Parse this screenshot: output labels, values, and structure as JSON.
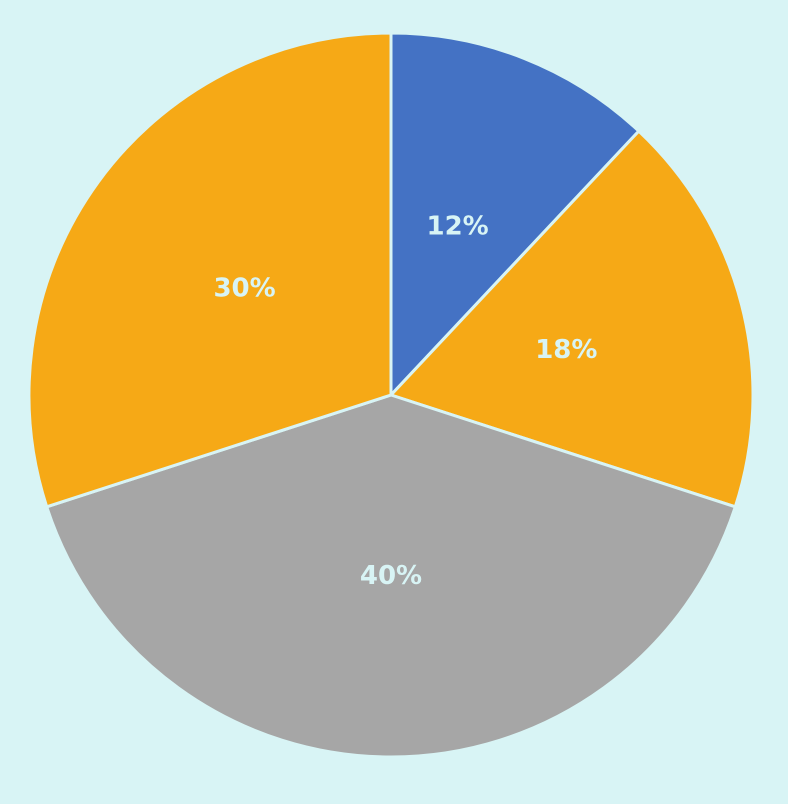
{
  "chart_data": {
    "type": "pie",
    "start_angle_deg": 0,
    "direction": "clockwise",
    "label_color": "#d8f4f5",
    "background_color": "#d8f4f5",
    "slices": [
      {
        "label": "12%",
        "value": 12,
        "color": "#4472c4"
      },
      {
        "label": "18%",
        "value": 18,
        "color": "#f6a916"
      },
      {
        "label": "40%",
        "value": 40,
        "color": "#a6a6a6"
      },
      {
        "label": "30%",
        "value": 30,
        "color": "#f6a916"
      }
    ]
  }
}
